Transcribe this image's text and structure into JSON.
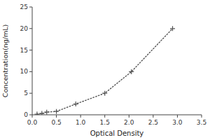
{
  "chart_data": {
    "type": "line",
    "xlabel": "Optical Density",
    "ylabel": "Concentration(ng/mL)",
    "x": [
      0.1,
      0.2,
      0.3,
      0.5,
      0.9,
      1.5,
      2.05,
      2.9
    ],
    "values": [
      0.156,
      0.312,
      0.625,
      0.781,
      2.5,
      5.0,
      10.0,
      20.0
    ],
    "color": "#555555",
    "marker": "plus",
    "line_style": "dotted",
    "xlim": [
      0,
      3.5
    ],
    "ylim": [
      0,
      25
    ],
    "xticks": [
      {
        "value": 0,
        "label": "0.0"
      },
      0.5,
      {
        "value": 1,
        "label": "1.0"
      },
      1.5,
      {
        "value": 2,
        "label": "2.0"
      },
      2.5,
      {
        "value": 3,
        "label": "3.0"
      },
      3.5
    ],
    "yticks": [
      0,
      5,
      10,
      15,
      20,
      25
    ],
    "grid": false
  }
}
